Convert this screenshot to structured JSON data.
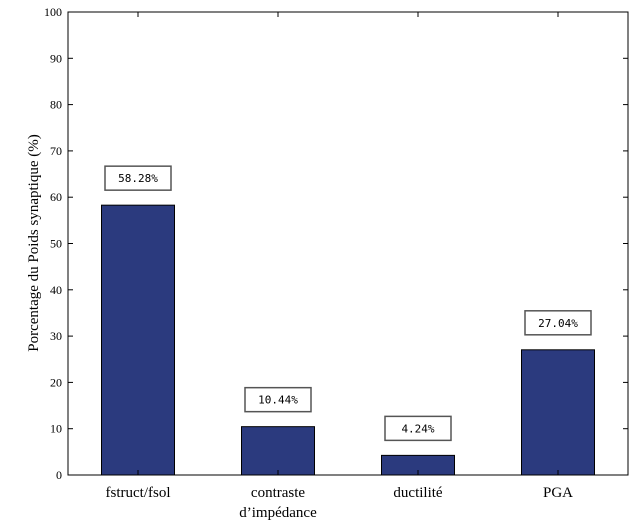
{
  "chart_data": {
    "type": "bar",
    "categories": [
      [
        "fstruct/fsol"
      ],
      [
        "contraste",
        "d’impédance"
      ],
      [
        "ductilité"
      ],
      [
        "PGA"
      ]
    ],
    "values": [
      58.28,
      10.44,
      4.24,
      27.04
    ],
    "data_labels": [
      "58.28%",
      "10.44%",
      "4.24%",
      "27.04%"
    ],
    "ylabel": "Porcentage du Poids synaptique (%)",
    "ylim": [
      0,
      100
    ],
    "yticks": [
      0,
      10,
      20,
      30,
      40,
      50,
      60,
      70,
      80,
      90,
      100
    ],
    "bar_color": "#2b3a7e",
    "grid": false
  }
}
